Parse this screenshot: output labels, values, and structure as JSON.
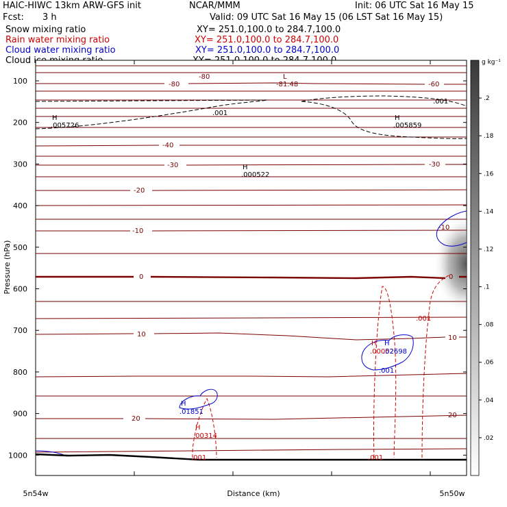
{
  "header": {
    "title": "HAIC-HIWC 13km ARW-GFS init",
    "org": "NCAR/MMM",
    "init": "Init: 06 UTC Sat 16 May 15",
    "fcst_label": "Fcst:",
    "fcst_value": "3 h",
    "valid": "Valid: 09 UTC Sat 16 May 15 (06 LST Sat 16 May 15)",
    "fields": [
      {
        "name": "Snow mixing ratio",
        "xy": "XY= 251.0,100.0 to 284.7,100.0",
        "color": "#000000"
      },
      {
        "name": "Rain water mixing ratio",
        "xy": "XY= 251.0,100.0 to 284.7,100.0",
        "color": "#cc0000"
      },
      {
        "name": "Cloud water mixing ratio",
        "xy": "XY= 251.0,100.0 to 284.7,100.0",
        "color": "#0000cc"
      },
      {
        "name": "Cloud ice mixing ratio",
        "xy": "XY= 251.0,100.0 to 284.7,100.0",
        "color": "#000000"
      }
    ]
  },
  "chart_data": {
    "type": "cross-section",
    "xlabel": "Distance (km)",
    "ylabel": "Pressure (hPa)",
    "x_start_label": "5n54w",
    "x_end_label": "5n50w",
    "y_ticks": [
      "100",
      "200",
      "300",
      "400",
      "500",
      "600",
      "700",
      "800",
      "900",
      "1000"
    ],
    "colorbar": {
      "unit": "g kg⁻¹",
      "ticks": [
        ".02",
        ".04",
        ".06",
        ".08",
        ".1",
        ".12",
        ".14",
        ".16",
        ".18",
        ".2"
      ],
      "color_low": "#ffffff",
      "color_high": "#3a3a3a"
    },
    "temperature_labels": [
      "-80",
      "-80",
      "-60",
      "-40",
      "-30",
      "-30",
      "-20",
      "-10",
      "-10",
      "0",
      "0",
      "10",
      "10",
      "20",
      "20"
    ],
    "temperature_minimum": {
      "marker": "L",
      "value": "-81.48"
    },
    "snow_labels": [
      ".001",
      ".001"
    ],
    "snow_maxima": [
      {
        "marker": "H",
        "value": ".005726"
      },
      {
        "marker": "H",
        "value": ".005859"
      },
      {
        "marker": "H",
        "value": ".000522"
      }
    ],
    "rain_labels": [
      ".001",
      ".001",
      ".001"
    ],
    "rain_maxima": [
      {
        "marker": "H",
        "value": ".00314"
      },
      {
        "marker": "H",
        "value": ".00052"
      }
    ],
    "cloud_water_labels": [
      ".001"
    ],
    "cloud_water_maxima": [
      {
        "marker": "H",
        "value": ".01851"
      },
      {
        "marker": "H",
        "value": ".02698"
      }
    ]
  }
}
